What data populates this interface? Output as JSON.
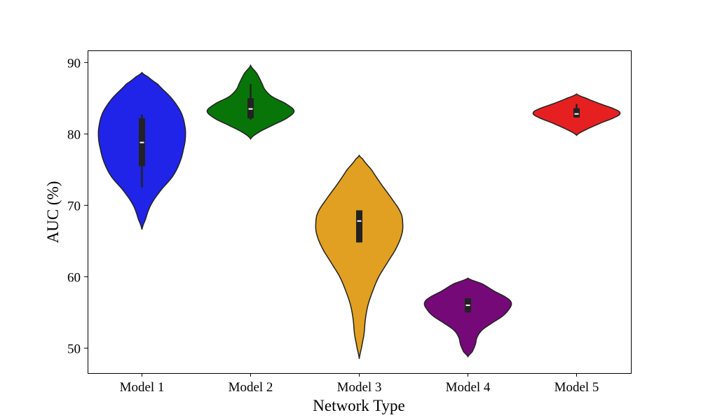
{
  "chart_data": {
    "type": "violin",
    "title": "",
    "xlabel": "Network Type",
    "ylabel": "AUC (%)",
    "ylim": [
      46.5,
      91.7
    ],
    "yticks": [
      50,
      60,
      70,
      80,
      90
    ],
    "grid": false,
    "categories": [
      "Model 1",
      "Model 2",
      "Model 3",
      "Model 4",
      "Model 5"
    ],
    "violins": [
      {
        "category": "Model 1",
        "color": "#1f24e8",
        "min": 66.6,
        "max": 88.6,
        "q1": 75.5,
        "median": 78.8,
        "q3": 82.2,
        "whisker_low": 72.5,
        "whisker_high": 82.7,
        "profile": [
          [
            66.6,
            0
          ],
          [
            68,
            0.08
          ],
          [
            70,
            0.2
          ],
          [
            72,
            0.42
          ],
          [
            74,
            0.7
          ],
          [
            76,
            0.87
          ],
          [
            78,
            0.96
          ],
          [
            79.5,
            1.0
          ],
          [
            81,
            0.99
          ],
          [
            83,
            0.9
          ],
          [
            85,
            0.68
          ],
          [
            87,
            0.36
          ],
          [
            88,
            0.14
          ],
          [
            88.6,
            0
          ]
        ]
      },
      {
        "category": "Model 2",
        "color": "#087508",
        "min": 79.3,
        "max": 89.6,
        "q1": 82.2,
        "median": 83.5,
        "q3": 85.0,
        "whisker_low": 82.0,
        "whisker_high": 87.0,
        "profile": [
          [
            79.3,
            0
          ],
          [
            80.2,
            0.18
          ],
          [
            81.2,
            0.5
          ],
          [
            82.2,
            0.83
          ],
          [
            83.2,
            1.0
          ],
          [
            84.2,
            0.82
          ],
          [
            85.2,
            0.5
          ],
          [
            86.2,
            0.33
          ],
          [
            87.2,
            0.25
          ],
          [
            88.5,
            0.14
          ],
          [
            89.6,
            0
          ]
        ]
      },
      {
        "category": "Model 3",
        "color": "#e1a021",
        "min": 48.5,
        "max": 77.0,
        "q1": 64.8,
        "median": 67.8,
        "q3": 69.3,
        "whisker_low": 64.8,
        "whisker_high": 69.3,
        "profile": [
          [
            48.5,
            0
          ],
          [
            50,
            0.05
          ],
          [
            52,
            0.11
          ],
          [
            54,
            0.14
          ],
          [
            56,
            0.2
          ],
          [
            58,
            0.31
          ],
          [
            60,
            0.45
          ],
          [
            62,
            0.65
          ],
          [
            64,
            0.85
          ],
          [
            66,
            0.98
          ],
          [
            67.5,
            1.0
          ],
          [
            69,
            0.95
          ],
          [
            71,
            0.74
          ],
          [
            73,
            0.5
          ],
          [
            75,
            0.28
          ],
          [
            76.5,
            0.08
          ],
          [
            77,
            0
          ]
        ]
      },
      {
        "category": "Model 4",
        "color": "#760978",
        "min": 48.8,
        "max": 59.8,
        "q1": 55.0,
        "median": 56.0,
        "q3": 57.0,
        "whisker_low": 55.0,
        "whisker_high": 57.0,
        "profile": [
          [
            48.8,
            0
          ],
          [
            49.5,
            0.1
          ],
          [
            50.5,
            0.17
          ],
          [
            51.5,
            0.21
          ],
          [
            52.5,
            0.32
          ],
          [
            53.5,
            0.55
          ],
          [
            54.5,
            0.8
          ],
          [
            55.5,
            0.95
          ],
          [
            56.3,
            1.0
          ],
          [
            57,
            0.9
          ],
          [
            58,
            0.6
          ],
          [
            59,
            0.33
          ],
          [
            59.8,
            0
          ]
        ]
      },
      {
        "category": "Model 5",
        "color": "#e62020",
        "min": 79.8,
        "max": 85.6,
        "q1": 82.3,
        "median": 82.8,
        "q3": 83.6,
        "whisker_low": 82.3,
        "whisker_high": 84.2,
        "profile": [
          [
            79.8,
            0
          ],
          [
            80.6,
            0.22
          ],
          [
            81.6,
            0.58
          ],
          [
            82.4,
            0.9
          ],
          [
            82.9,
            1.0
          ],
          [
            83.4,
            0.9
          ],
          [
            84.2,
            0.55
          ],
          [
            85,
            0.22
          ],
          [
            85.6,
            0
          ]
        ]
      }
    ]
  }
}
